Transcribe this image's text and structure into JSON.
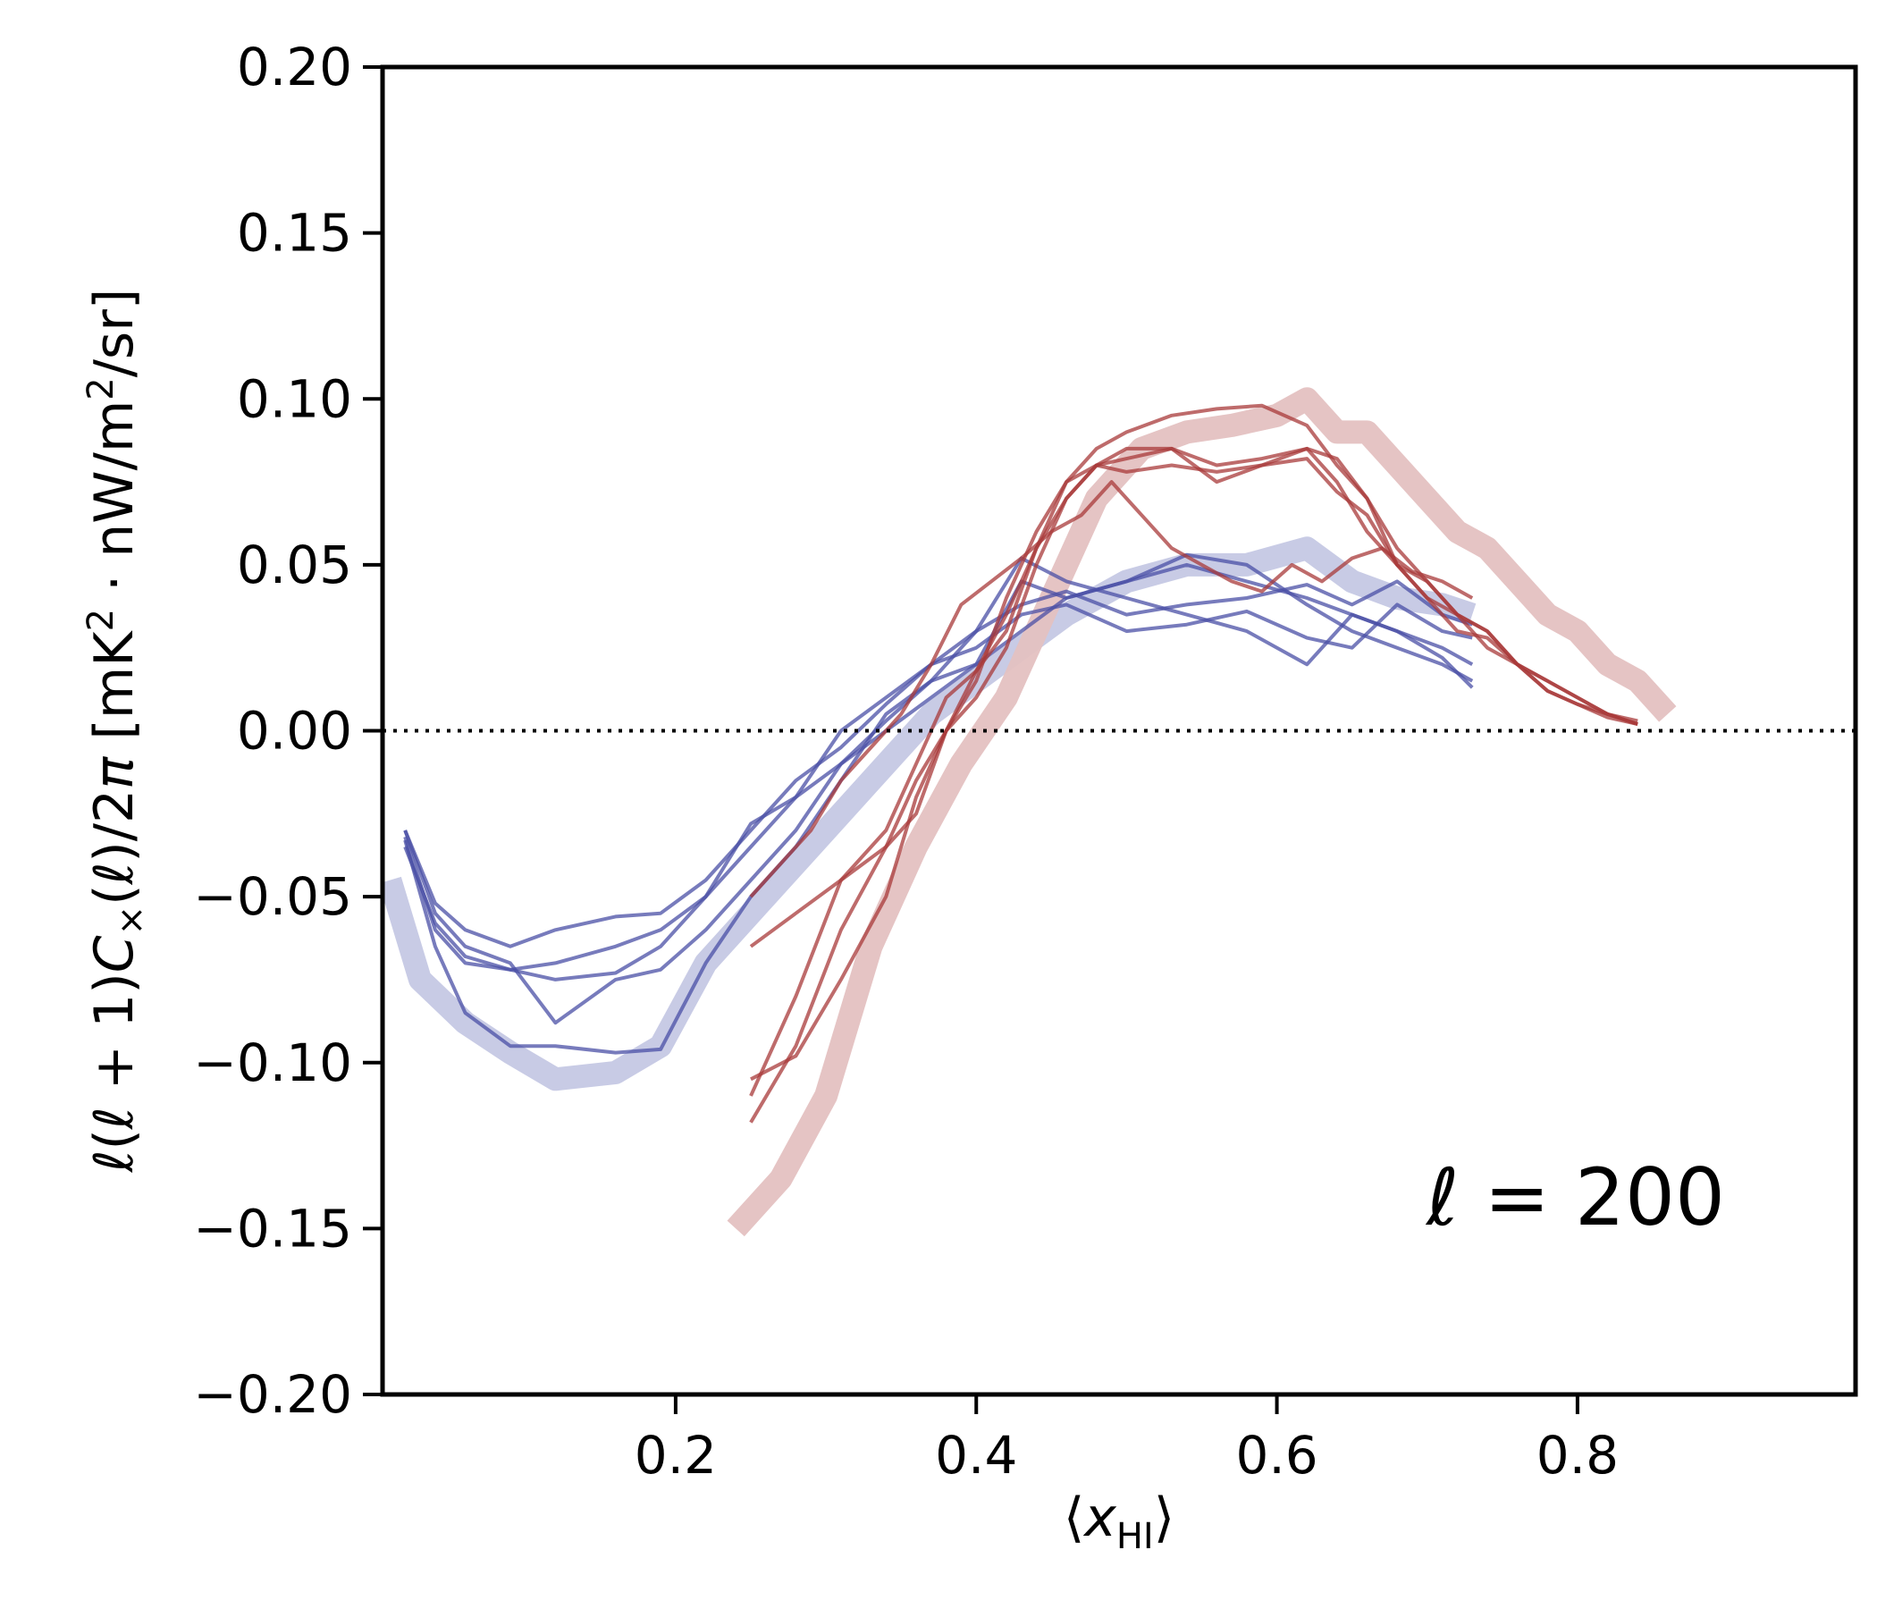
{
  "chart_data": {
    "type": "line",
    "title": "",
    "xlabel": "⟨x_HI⟩",
    "ylabel": "ℓ(ℓ + 1)C×(ℓ)/2π [mK²·nW/m²/sr]",
    "xlim": [
      0.005,
      0.985
    ],
    "ylim": [
      -0.2,
      0.2
    ],
    "xticks": [
      "0.2",
      "0.4",
      "0.6",
      "0.8"
    ],
    "yticks": [
      "0.20",
      "0.15",
      "0.10",
      "0.05",
      "0.00",
      "−0.05",
      "−0.10",
      "−0.15",
      "−0.20"
    ],
    "zero_line": {
      "y": 0.0,
      "style": "dotted"
    },
    "annotation": "ℓ = 200",
    "colors": {
      "blue_fid": "#c5c8e4",
      "blue_line": "#4a4fa6",
      "red_fid": "#e4c1c1",
      "red_line": "#a8393a",
      "axis": "#000000"
    },
    "series": [
      {
        "name": "blue-fiducial",
        "group": "blue",
        "role": "fiducial",
        "x": [
          0.01,
          0.03,
          0.06,
          0.09,
          0.12,
          0.16,
          0.19,
          0.22,
          0.26,
          0.3,
          0.34,
          0.37,
          0.4,
          0.43,
          0.46,
          0.5,
          0.54,
          0.58,
          0.62,
          0.65,
          0.68,
          0.71,
          0.73
        ],
        "y": [
          -0.045,
          -0.075,
          -0.088,
          -0.097,
          -0.105,
          -0.103,
          -0.095,
          -0.07,
          -0.05,
          -0.03,
          -0.01,
          0.005,
          0.015,
          0.025,
          0.035,
          0.045,
          0.05,
          0.05,
          0.055,
          0.045,
          0.04,
          0.038,
          0.035
        ]
      },
      {
        "name": "blue-1",
        "group": "blue",
        "role": "realization",
        "x": [
          0.02,
          0.04,
          0.06,
          0.09,
          0.12,
          0.16,
          0.19,
          0.22,
          0.25,
          0.28,
          0.31,
          0.34,
          0.37,
          0.4,
          0.43,
          0.46,
          0.5,
          0.54,
          0.58,
          0.62,
          0.65,
          0.68,
          0.71,
          0.73
        ],
        "y": [
          -0.033,
          -0.065,
          -0.085,
          -0.095,
          -0.095,
          -0.097,
          -0.096,
          -0.07,
          -0.05,
          -0.035,
          -0.015,
          0.005,
          0.015,
          0.02,
          0.03,
          0.04,
          0.045,
          0.05,
          0.045,
          0.04,
          0.035,
          0.03,
          0.025,
          0.02
        ]
      },
      {
        "name": "blue-2",
        "group": "blue",
        "role": "realization",
        "x": [
          0.02,
          0.04,
          0.06,
          0.09,
          0.12,
          0.16,
          0.19,
          0.22,
          0.25,
          0.28,
          0.31,
          0.34,
          0.37,
          0.4,
          0.43,
          0.46,
          0.5,
          0.54,
          0.58,
          0.62,
          0.65,
          0.68,
          0.71,
          0.73
        ],
        "y": [
          -0.03,
          -0.055,
          -0.065,
          -0.07,
          -0.088,
          -0.075,
          -0.072,
          -0.06,
          -0.045,
          -0.03,
          -0.01,
          0.0,
          0.01,
          0.02,
          0.045,
          0.04,
          0.045,
          0.053,
          0.05,
          0.038,
          0.03,
          0.025,
          0.02,
          0.015
        ]
      },
      {
        "name": "blue-3",
        "group": "blue",
        "role": "realization",
        "x": [
          0.02,
          0.04,
          0.06,
          0.09,
          0.12,
          0.16,
          0.19,
          0.22,
          0.25,
          0.28,
          0.31,
          0.34,
          0.37,
          0.4,
          0.43,
          0.46,
          0.5,
          0.54,
          0.58,
          0.62,
          0.65,
          0.68,
          0.71,
          0.73
        ],
        "y": [
          -0.035,
          -0.058,
          -0.068,
          -0.072,
          -0.075,
          -0.073,
          -0.065,
          -0.05,
          -0.035,
          -0.02,
          -0.01,
          0.003,
          0.015,
          0.03,
          0.052,
          0.045,
          0.04,
          0.035,
          0.03,
          0.02,
          0.035,
          0.03,
          0.022,
          0.013
        ]
      },
      {
        "name": "blue-4",
        "group": "blue",
        "role": "realization",
        "x": [
          0.02,
          0.04,
          0.06,
          0.09,
          0.12,
          0.16,
          0.19,
          0.22,
          0.25,
          0.28,
          0.31,
          0.34,
          0.37,
          0.4,
          0.43,
          0.46,
          0.5,
          0.54,
          0.58,
          0.62,
          0.65,
          0.68,
          0.71,
          0.73
        ],
        "y": [
          -0.03,
          -0.052,
          -0.06,
          -0.065,
          -0.06,
          -0.056,
          -0.055,
          -0.045,
          -0.03,
          -0.015,
          -0.005,
          0.008,
          0.02,
          0.03,
          0.038,
          0.042,
          0.035,
          0.038,
          0.04,
          0.044,
          0.038,
          0.045,
          0.035,
          0.032
        ]
      },
      {
        "name": "blue-5",
        "group": "blue",
        "role": "realization",
        "x": [
          0.02,
          0.04,
          0.06,
          0.09,
          0.12,
          0.16,
          0.19,
          0.22,
          0.25,
          0.28,
          0.31,
          0.34,
          0.37,
          0.4,
          0.43,
          0.46,
          0.5,
          0.54,
          0.58,
          0.62,
          0.65,
          0.68,
          0.71,
          0.73
        ],
        "y": [
          -0.032,
          -0.06,
          -0.07,
          -0.072,
          -0.07,
          -0.065,
          -0.06,
          -0.05,
          -0.028,
          -0.02,
          0.0,
          0.01,
          0.02,
          0.025,
          0.035,
          0.038,
          0.03,
          0.032,
          0.036,
          0.028,
          0.025,
          0.038,
          0.03,
          0.028
        ]
      },
      {
        "name": "red-fiducial",
        "group": "red",
        "role": "fiducial",
        "x": [
          0.24,
          0.27,
          0.3,
          0.33,
          0.36,
          0.39,
          0.42,
          0.45,
          0.48,
          0.51,
          0.54,
          0.57,
          0.6,
          0.62,
          0.64,
          0.66,
          0.68,
          0.7,
          0.72,
          0.74,
          0.76,
          0.78,
          0.8,
          0.82,
          0.84,
          0.86
        ],
        "y": [
          -0.15,
          -0.135,
          -0.11,
          -0.065,
          -0.035,
          -0.01,
          0.01,
          0.04,
          0.07,
          0.085,
          0.09,
          0.092,
          0.095,
          0.1,
          0.09,
          0.09,
          0.08,
          0.07,
          0.06,
          0.055,
          0.045,
          0.035,
          0.03,
          0.02,
          0.015,
          0.005
        ]
      },
      {
        "name": "red-1",
        "group": "red",
        "role": "realization",
        "x": [
          0.25,
          0.28,
          0.31,
          0.34,
          0.36,
          0.38,
          0.4,
          0.42,
          0.44,
          0.46,
          0.48,
          0.5,
          0.53,
          0.56,
          0.59,
          0.62,
          0.64,
          0.66,
          0.68,
          0.7,
          0.72,
          0.74,
          0.76,
          0.78,
          0.8,
          0.82,
          0.84
        ],
        "y": [
          -0.118,
          -0.095,
          -0.06,
          -0.035,
          -0.015,
          0.0,
          0.015,
          0.04,
          0.06,
          0.075,
          0.085,
          0.09,
          0.095,
          0.097,
          0.098,
          0.092,
          0.08,
          0.07,
          0.055,
          0.045,
          0.035,
          0.03,
          0.02,
          0.015,
          0.01,
          0.005,
          0.002
        ]
      },
      {
        "name": "red-2",
        "group": "red",
        "role": "realization",
        "x": [
          0.25,
          0.28,
          0.31,
          0.34,
          0.36,
          0.38,
          0.4,
          0.42,
          0.44,
          0.46,
          0.48,
          0.5,
          0.53,
          0.56,
          0.59,
          0.62,
          0.64,
          0.66,
          0.68,
          0.7,
          0.72,
          0.74,
          0.76,
          0.78,
          0.8,
          0.82,
          0.84
        ],
        "y": [
          -0.105,
          -0.098,
          -0.075,
          -0.05,
          -0.02,
          0.0,
          0.01,
          0.025,
          0.05,
          0.07,
          0.08,
          0.082,
          0.085,
          0.08,
          0.082,
          0.085,
          0.075,
          0.06,
          0.05,
          0.04,
          0.035,
          0.03,
          0.02,
          0.015,
          0.01,
          0.005,
          0.003
        ]
      },
      {
        "name": "red-3",
        "group": "red",
        "role": "realization",
        "x": [
          0.25,
          0.28,
          0.31,
          0.34,
          0.36,
          0.38,
          0.4,
          0.42,
          0.44,
          0.46,
          0.48,
          0.5,
          0.53,
          0.56,
          0.59,
          0.62,
          0.64,
          0.66,
          0.68,
          0.7,
          0.72,
          0.74,
          0.76,
          0.78,
          0.8,
          0.82,
          0.84
        ],
        "y": [
          -0.11,
          -0.08,
          -0.045,
          -0.035,
          -0.025,
          0.0,
          0.018,
          0.03,
          0.055,
          0.075,
          0.08,
          0.085,
          0.085,
          0.075,
          0.08,
          0.085,
          0.082,
          0.07,
          0.05,
          0.04,
          0.03,
          0.028,
          0.02,
          0.012,
          0.008,
          0.004,
          0.002
        ]
      },
      {
        "name": "red-4",
        "group": "red",
        "role": "realization",
        "x": [
          0.25,
          0.28,
          0.31,
          0.34,
          0.36,
          0.38,
          0.4,
          0.42,
          0.44,
          0.46,
          0.48,
          0.5,
          0.53,
          0.56,
          0.59,
          0.62,
          0.64,
          0.66,
          0.68,
          0.7,
          0.72,
          0.74,
          0.76,
          0.78,
          0.8,
          0.82,
          0.84
        ],
        "y": [
          -0.065,
          -0.055,
          -0.045,
          -0.03,
          -0.01,
          0.01,
          0.018,
          0.035,
          0.055,
          0.07,
          0.08,
          0.078,
          0.08,
          0.078,
          0.08,
          0.082,
          0.072,
          0.065,
          0.05,
          0.045,
          0.035,
          0.025,
          0.02,
          0.012,
          0.008,
          0.005,
          0.002
        ]
      },
      {
        "name": "red-5",
        "group": "red",
        "role": "realization",
        "x": [
          0.25,
          0.27,
          0.29,
          0.31,
          0.33,
          0.35,
          0.37,
          0.39,
          0.41,
          0.43,
          0.45,
          0.47,
          0.49,
          0.51,
          0.53,
          0.55,
          0.57,
          0.59,
          0.61,
          0.63,
          0.65,
          0.67,
          0.69,
          0.71,
          0.73
        ],
        "y": [
          -0.05,
          -0.04,
          -0.03,
          -0.015,
          -0.005,
          0.005,
          0.02,
          0.038,
          0.045,
          0.052,
          0.06,
          0.065,
          0.075,
          0.065,
          0.055,
          0.05,
          0.045,
          0.042,
          0.05,
          0.045,
          0.052,
          0.055,
          0.048,
          0.045,
          0.04
        ]
      }
    ]
  }
}
